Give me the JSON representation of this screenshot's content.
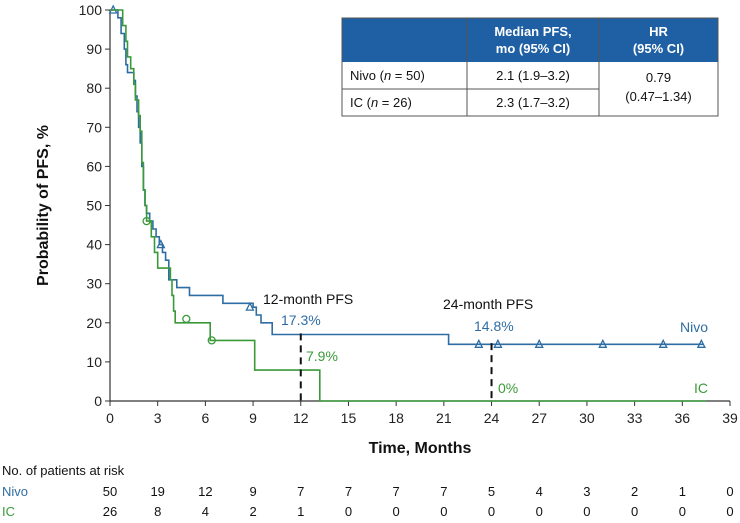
{
  "chart_data": {
    "type": "line",
    "subtype": "kaplan-meier",
    "xlabel": "Time, Months",
    "ylabel": "Probability of PFS, %",
    "xlim": [
      0,
      39
    ],
    "ylim": [
      0,
      100
    ],
    "xticks": [
      0,
      3,
      6,
      9,
      12,
      15,
      18,
      21,
      24,
      27,
      30,
      33,
      36,
      39
    ],
    "yticks": [
      0,
      10,
      20,
      30,
      40,
      50,
      60,
      70,
      80,
      90,
      100
    ],
    "colors": {
      "nivo": "#2e6da4",
      "ic": "#3a9a3a",
      "table_header": "#1f5fa3"
    },
    "series": [
      {
        "name": "Nivo",
        "key": "nivo",
        "steps": [
          [
            0,
            100
          ],
          [
            0.5,
            98
          ],
          [
            0.7,
            94
          ],
          [
            0.9,
            90
          ],
          [
            1.0,
            86
          ],
          [
            1.1,
            84
          ],
          [
            1.3,
            84
          ],
          [
            1.5,
            82
          ],
          [
            1.6,
            78
          ],
          [
            1.7,
            74
          ],
          [
            1.8,
            70
          ],
          [
            1.9,
            66
          ],
          [
            2.0,
            60
          ],
          [
            2.1,
            54
          ],
          [
            2.2,
            50
          ],
          [
            2.3,
            48
          ],
          [
            2.5,
            46
          ],
          [
            2.7,
            44
          ],
          [
            2.9,
            42
          ],
          [
            3.1,
            40
          ],
          [
            3.3,
            38
          ],
          [
            3.5,
            36
          ],
          [
            3.7,
            31
          ],
          [
            4.2,
            29
          ],
          [
            5.0,
            27
          ],
          [
            6.7,
            27
          ],
          [
            7.1,
            25
          ],
          [
            9.0,
            24
          ],
          [
            9.2,
            22
          ],
          [
            9.5,
            20
          ],
          [
            10.2,
            17
          ],
          [
            21.3,
            14.5
          ],
          [
            37.3,
            14.5
          ]
        ],
        "censored": [
          [
            0.2,
            100
          ],
          [
            3.2,
            40
          ],
          [
            8.8,
            24
          ],
          [
            23.2,
            14.5
          ],
          [
            24.4,
            14.5
          ],
          [
            27.0,
            14.5
          ],
          [
            31.0,
            14.5
          ],
          [
            34.8,
            14.5
          ],
          [
            37.2,
            14.5
          ]
        ],
        "end_label": "Nivo"
      },
      {
        "name": "IC",
        "key": "ic",
        "steps": [
          [
            0,
            100
          ],
          [
            0.8,
            96
          ],
          [
            1.0,
            92
          ],
          [
            1.1,
            88
          ],
          [
            1.3,
            85
          ],
          [
            1.5,
            81
          ],
          [
            1.6,
            77
          ],
          [
            1.8,
            73
          ],
          [
            1.9,
            69
          ],
          [
            2.0,
            61
          ],
          [
            2.1,
            54
          ],
          [
            2.2,
            50
          ],
          [
            2.3,
            46
          ],
          [
            2.6,
            42
          ],
          [
            2.8,
            38
          ],
          [
            3.0,
            34
          ],
          [
            3.8,
            31
          ],
          [
            3.9,
            27
          ],
          [
            4.0,
            23
          ],
          [
            4.1,
            20
          ],
          [
            6.3,
            15.5
          ],
          [
            9.1,
            7.9
          ],
          [
            13.2,
            0
          ],
          [
            37.5,
            0
          ]
        ],
        "censored": [
          [
            2.3,
            46
          ],
          [
            4.8,
            21
          ],
          [
            6.4,
            15.5
          ]
        ],
        "end_label": "IC"
      }
    ],
    "landmarks": [
      {
        "time": 12,
        "label": "12-month PFS",
        "nivo_value": "17.3%",
        "ic_value": "7.9%"
      },
      {
        "time": 24,
        "label": "24-month PFS",
        "nivo_value": "14.8%",
        "ic_value": "0%"
      }
    ],
    "risk_table": {
      "title": "No. of patients at risk",
      "rows": [
        {
          "name": "Nivo",
          "key": "nivo",
          "values": [
            "50",
            "19",
            "12",
            "9",
            "7",
            "7",
            "7",
            "7",
            "5",
            "4",
            "3",
            "2",
            "1",
            "0"
          ]
        },
        {
          "name": "IC",
          "key": "ic",
          "values": [
            "26",
            "8",
            "4",
            "2",
            "1",
            "0",
            "0",
            "0",
            "0",
            "0",
            "0",
            "0",
            "0",
            "0"
          ]
        }
      ]
    },
    "summary_table": {
      "headers": [
        "",
        "Median PFS, mo (95% CI)",
        "HR (95% CI)"
      ],
      "header_lines": [
        [
          "Median PFS,",
          "mo (95% CI)"
        ],
        [
          "HR",
          "(95% CI)"
        ]
      ],
      "rows": [
        {
          "arm": "Nivo",
          "n_label": "n",
          "n_value": "= 50",
          "median": "2.1 (1.9–3.2)"
        },
        {
          "arm": "IC",
          "n_label": "n",
          "n_value": "= 26",
          "median": "2.3 (1.7–3.2)"
        }
      ],
      "hr_value": "0.79",
      "hr_ci": "(0.47–1.34)"
    }
  }
}
